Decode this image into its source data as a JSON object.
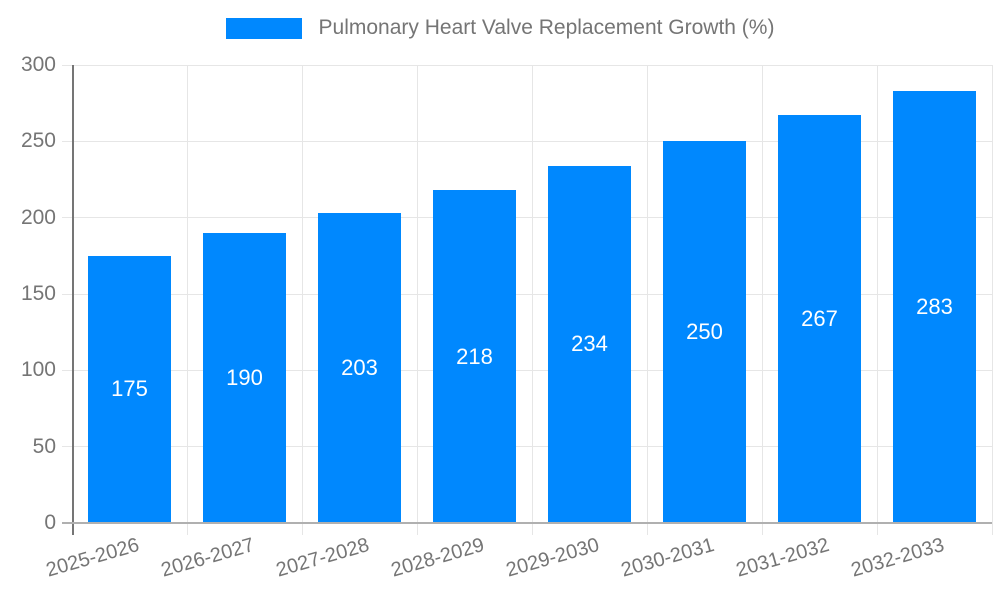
{
  "legend": {
    "label": "Pulmonary Heart Valve Replacement Growth (%)"
  },
  "chart_data": {
    "type": "bar",
    "title": "Pulmonary Heart Valve Replacement Growth (%)",
    "categories": [
      "2025-2026",
      "2026-2027",
      "2027-2028",
      "2028-2029",
      "2029-2030",
      "2030-2031",
      "2031-2032",
      "2032-2033"
    ],
    "values": [
      175,
      190,
      203,
      218,
      234,
      250,
      267,
      283
    ],
    "value_labels": [
      "175",
      "190",
      "203",
      "218",
      "234",
      "250",
      "267",
      "283"
    ],
    "xlabel": "",
    "ylabel": "",
    "ylim": [
      0,
      300
    ],
    "yticks": [
      0,
      50,
      100,
      150,
      200,
      250,
      300
    ],
    "grid": true,
    "legend_position": "top-center",
    "colors": {
      "bar": "#0088fe",
      "grid": "#e6e6e6",
      "axis_bottom": "#b0b0b0",
      "axis_left": "#757575",
      "tick_text": "#757575",
      "legend_text": "#757575",
      "value_label": "#ffffff",
      "background": "#ffffff"
    }
  }
}
